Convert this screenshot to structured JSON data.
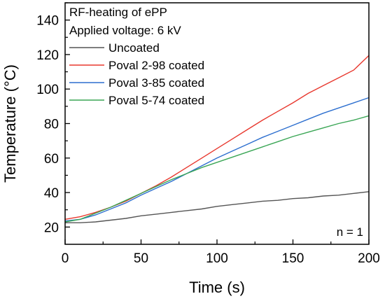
{
  "chart_data": {
    "type": "line",
    "title_lines": [
      "RF-heating of ePP",
      "Applied voltage: 6 kV"
    ],
    "xlabel": "Time (s)",
    "ylabel": "Temperature (°C)",
    "xlim": [
      0,
      200
    ],
    "ylim": [
      10,
      150
    ],
    "xticks": [
      0,
      50,
      100,
      150,
      200
    ],
    "yticks": [
      20,
      40,
      60,
      80,
      100,
      120,
      140
    ],
    "grid": false,
    "legend_position": "top-left",
    "annotation": "n = 1",
    "series": [
      {
        "name": "Uncoated",
        "color": "#555555",
        "x": [
          0,
          10,
          20,
          30,
          40,
          50,
          60,
          70,
          80,
          90,
          100,
          110,
          120,
          130,
          140,
          150,
          160,
          170,
          180,
          190,
          200
        ],
        "y": [
          22.5,
          22.5,
          23.0,
          24.0,
          25.0,
          26.5,
          27.5,
          28.5,
          29.5,
          30.5,
          32.0,
          33.0,
          34.0,
          35.0,
          35.5,
          36.5,
          37.0,
          38.0,
          38.5,
          39.5,
          40.5
        ]
      },
      {
        "name": "Poval 2-98 coated",
        "color": "#e8382e",
        "x": [
          0,
          10,
          20,
          30,
          40,
          50,
          60,
          70,
          80,
          90,
          100,
          110,
          120,
          130,
          140,
          150,
          160,
          170,
          180,
          190,
          200
        ],
        "y": [
          24.5,
          26.0,
          28.5,
          31.5,
          35.0,
          39.5,
          44.0,
          49.0,
          54.5,
          60.0,
          65.5,
          71.0,
          76.5,
          82.0,
          87.0,
          92.0,
          97.5,
          102.0,
          106.5,
          111.0,
          119.5
        ]
      },
      {
        "name": "Poval 3-85 coated",
        "color": "#2d6fcf",
        "x": [
          0,
          10,
          20,
          30,
          40,
          50,
          60,
          70,
          80,
          90,
          100,
          110,
          120,
          130,
          140,
          150,
          160,
          170,
          180,
          190,
          200
        ],
        "y": [
          23.5,
          24.5,
          27.0,
          30.5,
          34.0,
          38.5,
          42.5,
          46.5,
          51.0,
          55.5,
          60.0,
          64.0,
          68.0,
          72.0,
          75.5,
          79.0,
          82.5,
          86.0,
          89.0,
          92.0,
          95.0
        ]
      },
      {
        "name": "Poval 5-74 coated",
        "color": "#3aa655",
        "x": [
          0,
          10,
          20,
          30,
          40,
          50,
          60,
          70,
          80,
          90,
          100,
          110,
          120,
          130,
          140,
          150,
          160,
          170,
          180,
          190,
          200
        ],
        "y": [
          23.0,
          24.5,
          28.0,
          31.5,
          35.5,
          39.5,
          43.5,
          47.5,
          51.0,
          54.5,
          57.5,
          60.5,
          63.5,
          66.5,
          69.5,
          72.5,
          75.0,
          77.5,
          80.0,
          82.0,
          84.5
        ]
      }
    ]
  }
}
